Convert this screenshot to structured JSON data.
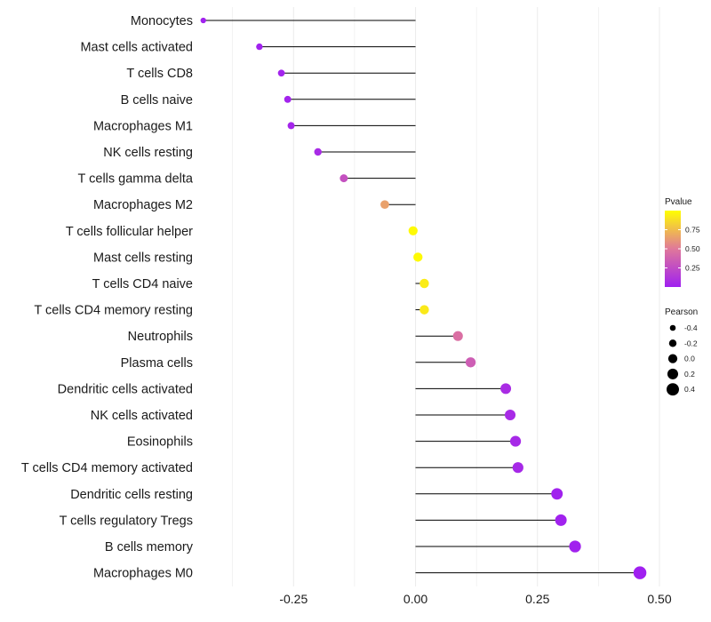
{
  "chart_data": {
    "type": "lollipop",
    "title": "",
    "xlabel": "",
    "ylabel": "",
    "xlim": [
      -0.44,
      0.5
    ],
    "x_ticks": [
      -0.25,
      0.0,
      0.25,
      0.5
    ],
    "x_tick_labels": [
      "-0.25",
      "0.00",
      "0.25",
      "0.50"
    ],
    "grid": true,
    "categories": [
      "Monocytes",
      "Mast cells activated",
      "T cells CD8",
      "B cells naive",
      "Macrophages M1",
      "NK cells resting",
      "T cells gamma delta",
      "Macrophages M2",
      "T cells follicular helper",
      "Mast cells resting",
      "T cells CD4 naive",
      "T cells CD4 memory resting",
      "Neutrophils",
      "Plasma cells",
      "Dendritic cells activated",
      "NK cells activated",
      "Eosinophils",
      "T cells CD4 memory activated",
      "Dendritic cells resting",
      "T cells regulatory  Tregs",
      "B cells memory",
      "Macrophages M0"
    ],
    "pearson": [
      -0.435,
      -0.32,
      -0.275,
      -0.262,
      -0.255,
      -0.2,
      -0.147,
      -0.063,
      -0.005,
      0.005,
      0.018,
      0.018,
      0.087,
      0.113,
      0.185,
      0.194,
      0.205,
      0.21,
      0.29,
      0.298,
      0.327,
      0.46
    ],
    "pvalue": [
      0.01,
      0.01,
      0.02,
      0.02,
      0.03,
      0.06,
      0.28,
      0.65,
      0.98,
      0.98,
      0.93,
      0.92,
      0.45,
      0.35,
      0.07,
      0.06,
      0.05,
      0.05,
      0.01,
      0.01,
      0.01,
      0.001
    ],
    "legend_color": {
      "title": "Pvalue",
      "placement": "right",
      "range": [
        0.0,
        1.0
      ],
      "ticks": [
        0.75,
        0.5,
        0.25
      ],
      "tick_labels": [
        "0.75",
        "0.50",
        "0.25"
      ],
      "low_color": "#a020f0",
      "mid_color": "#e0789a",
      "high_color": "#ffff00"
    },
    "legend_size": {
      "title": "Pearson",
      "placement": "right",
      "values": [
        -0.4,
        -0.2,
        0.0,
        0.2,
        0.4
      ],
      "labels": [
        "-0.4",
        "-0.2",
        "0.0",
        "0.2",
        "0.4"
      ]
    }
  },
  "colors": {
    "segment": "#000000",
    "grid": "#ebebeb",
    "background": "#ffffff"
  }
}
